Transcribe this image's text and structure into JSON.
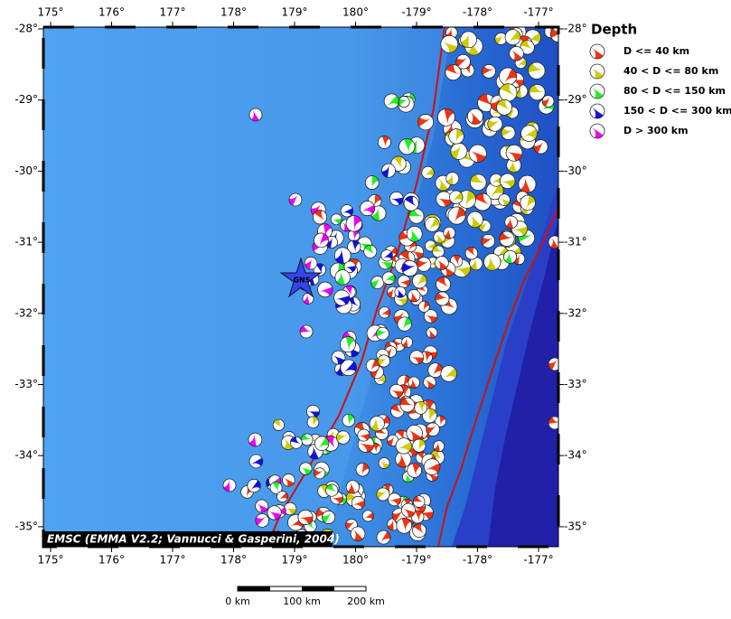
{
  "map": {
    "lon_ticks": [
      "175°",
      "176°",
      "177°",
      "178°",
      "179°",
      "180°",
      "-179°",
      "-178°",
      "-177°"
    ],
    "lat_ticks": [
      "-28°",
      "-29°",
      "-30°",
      "-31°",
      "-32°",
      "-33°",
      "-34°",
      "-35°"
    ],
    "credit": "EMSC (EMMA V2.2; Vannucci & Gasperini, 2004)",
    "station": "GNS",
    "scale_labels": [
      "0 km",
      "100 km",
      "200 km"
    ]
  },
  "legend": {
    "title": "Depth",
    "items": [
      {
        "label": "D <= 40 km",
        "color": "#ee3311"
      },
      {
        "label": "40 < D <= 80 km",
        "color": "#cccc00"
      },
      {
        "label": "80 < D <= 150 km",
        "color": "#22ee22"
      },
      {
        "label": "150 < D <= 300 km",
        "color": "#1111dd"
      },
      {
        "label": "D > 300 km",
        "color": "#ee00ee"
      }
    ]
  }
}
